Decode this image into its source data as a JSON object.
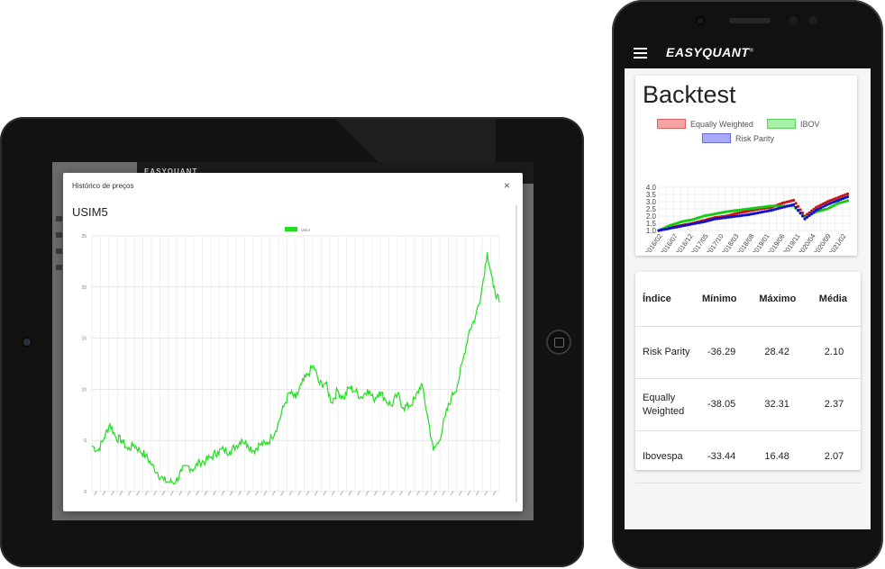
{
  "tablet": {
    "app_logo": "EASYQUANT",
    "modal": {
      "title": "Histórico de preços",
      "close_glyph": "×",
      "ticker": "USIM5"
    }
  },
  "phone": {
    "app_logo": "EASYQUANT",
    "backtest_title": "Backtest",
    "table": {
      "headers": [
        "Índice",
        "Mínimo",
        "Máximo",
        "Média"
      ],
      "rows": [
        {
          "name": "Risk Parity",
          "min": "-36.29",
          "max": "28.42",
          "mean": "2.10"
        },
        {
          "name": "Equally Weighted",
          "min": "-38.05",
          "max": "32.31",
          "mean": "2.37"
        },
        {
          "name": "Ibovespa",
          "min": "-33.44",
          "max": "16.48",
          "mean": "2.07"
        }
      ]
    }
  },
  "chart_data": [
    {
      "type": "line",
      "legend": [
        "Valor"
      ],
      "ylim": [
        0,
        25
      ],
      "yticks": [
        0,
        5,
        10,
        15,
        20,
        25
      ],
      "grid": true,
      "legend_placement": "top-center",
      "series": [
        {
          "name": "Valor",
          "color": "#22dd22",
          "values": [
            4.5,
            4.0,
            5.2,
            6.6,
            5.3,
            5.0,
            4.1,
            4.6,
            4.0,
            3.5,
            2.6,
            1.8,
            1.1,
            0.9,
            1.0,
            2.0,
            2.5,
            2.2,
            2.9,
            3.0,
            3.4,
            3.9,
            4.1,
            3.9,
            4.4,
            5.1,
            4.6,
            4.0,
            4.6,
            4.6,
            5.3,
            6.5,
            8.3,
            9.7,
            9.1,
            10.5,
            11.4,
            12.3,
            10.5,
            10.6,
            8.7,
            9.9,
            9.1,
            10.2,
            9.8,
            9.2,
            10.0,
            9.0,
            9.8,
            9.0,
            8.4,
            9.5,
            8.2,
            8.4,
            9.1,
            10.6,
            7.5,
            4.0,
            5.0,
            7.4,
            9.2,
            10.4,
            13.0,
            15.8,
            17.0,
            19.5,
            23.4,
            20.0,
            18.5
          ]
        }
      ]
    },
    {
      "type": "line",
      "yticks": [
        "1.0",
        "1.5",
        "2.0",
        "2.5",
        "3.0",
        "3.5",
        "4.0"
      ],
      "ylim": [
        1.0,
        4.0
      ],
      "x_ticks": [
        "2016/02",
        "2016/07",
        "2016/12",
        "2017/05",
        "2017/10",
        "2018/03",
        "2018/08",
        "2019/01",
        "2019/06",
        "2019/11",
        "2020/04",
        "2020/09",
        "2021/02"
      ],
      "grid": true,
      "legend_placement": "top-center",
      "series": [
        {
          "name": "Equally Weighted",
          "color": "#cc1111",
          "values": [
            1.0,
            1.2,
            1.35,
            1.5,
            1.7,
            1.9,
            2.0,
            2.2,
            2.35,
            2.5,
            2.6,
            2.9,
            3.1,
            2.0,
            2.6,
            3.0,
            3.3,
            3.6
          ]
        },
        {
          "name": "IBOV",
          "color": "#11cc11",
          "values": [
            1.0,
            1.35,
            1.6,
            1.75,
            2.0,
            2.15,
            2.3,
            2.4,
            2.5,
            2.6,
            2.7,
            2.7,
            2.7,
            1.9,
            2.3,
            2.5,
            2.9,
            3.1
          ]
        },
        {
          "name": "Risk Parity",
          "color": "#1111cc",
          "values": [
            1.0,
            1.15,
            1.3,
            1.45,
            1.6,
            1.8,
            1.9,
            2.0,
            2.1,
            2.25,
            2.4,
            2.6,
            2.8,
            1.8,
            2.4,
            2.8,
            3.1,
            3.4
          ]
        }
      ]
    }
  ]
}
